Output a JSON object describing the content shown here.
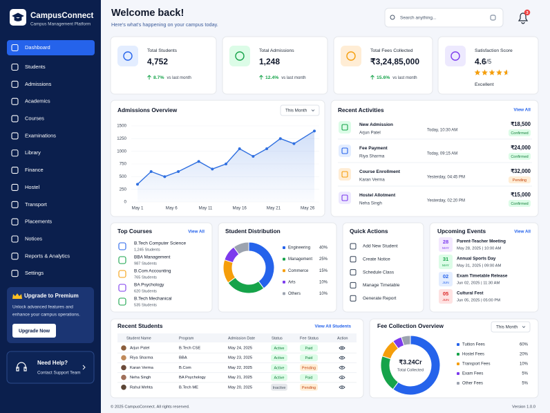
{
  "brand": {
    "name": "CampusConnect",
    "tagline": "Campus Management Platform"
  },
  "nav": [
    "Dashboard",
    "Students",
    "Admissions",
    "Academics",
    "Courses",
    "Examinations",
    "Library",
    "Finance",
    "Hostel",
    "Transport",
    "Placements",
    "Notices",
    "Reports & Analytics",
    "Settings"
  ],
  "active_nav": 0,
  "upgrade": {
    "title": "Upgrade to Premium",
    "text": [
      "Unlock advanced features and",
      "enhance your campus operations."
    ],
    "button": "Upgrade Now"
  },
  "help": {
    "title": "Need Help?",
    "text": "Contact Support Team"
  },
  "header": {
    "title": "Welcome back!",
    "subtitle": "Here's what's happening on your campus today.",
    "search_placeholder": "Search anything...",
    "notifications": 3
  },
  "stats": [
    {
      "title": "Total Students",
      "value": "4,752",
      "change": "8.7%",
      "change_note": "vs last month"
    },
    {
      "title": "Total Admissions",
      "value": "1,248",
      "change": "12.4%",
      "change_note": "vs last month"
    },
    {
      "title": "Total Fees Collected",
      "value": "₹3,24,85,000",
      "change": "15.6%",
      "change_note": "vs last month"
    },
    {
      "title": "Satisfaction Score",
      "rating": 4.6,
      "rating_suffix": "/5",
      "rating_label": "Excellent"
    }
  ],
  "admissions": {
    "type": "line",
    "title": "Admissions Overview",
    "period": "This Month",
    "color": "#2f6fe0",
    "x": [
      1,
      3,
      5,
      7,
      10,
      12,
      14,
      16,
      18,
      20,
      22,
      24,
      27
    ],
    "values": [
      350,
      600,
      500,
      600,
      800,
      650,
      750,
      1050,
      900,
      1050,
      1250,
      1150,
      1400
    ],
    "xlim": [
      1,
      27
    ],
    "xticks": [
      {
        "value": 1,
        "label": "May 1"
      },
      {
        "value": 6,
        "label": "May 6"
      },
      {
        "value": 11,
        "label": "May 11"
      },
      {
        "value": 16,
        "label": "May 16"
      },
      {
        "value": 21,
        "label": "May 21"
      },
      {
        "value": 26,
        "label": "May 26"
      }
    ],
    "ylim": [
      0,
      1500
    ],
    "yticks": [
      0,
      250,
      500,
      750,
      1000,
      1250,
      1500
    ]
  },
  "activities": {
    "title": "Recent Activities",
    "link": "View All",
    "items": [
      {
        "title": "New Admission",
        "person": "Arjun Patel",
        "time": "Today, 10:30 AM",
        "amount": "₹18,500",
        "status": "Confirmed"
      },
      {
        "title": "Fee Payment",
        "person": "Riya Sharma",
        "time": "Today, 09:15 AM",
        "amount": "₹24,000",
        "status": "Confirmed"
      },
      {
        "title": "Course Enrollment",
        "person": "Karan Verma",
        "time": "Yesterday, 04:45 PM",
        "amount": "₹32,000",
        "status": "Pending"
      },
      {
        "title": "Hostel Allotment",
        "person": "Neha Singh",
        "time": "Yesterday, 02:20 PM",
        "amount": "₹15,000",
        "status": "Confirmed"
      }
    ]
  },
  "top_courses": {
    "title": "Top Courses",
    "link": "View All",
    "items": [
      {
        "name": "B.Tech Computer Science",
        "students": "1,245 Students"
      },
      {
        "name": "BBA Management",
        "students": "987 Students"
      },
      {
        "name": "B.Com Accounting",
        "students": "765 Students"
      },
      {
        "name": "BA Psychology",
        "students": "620 Students"
      },
      {
        "name": "B.Tech Mechanical",
        "students": "535 Students"
      }
    ]
  },
  "distribution": {
    "type": "pie",
    "title": "Student Distribution",
    "categories": [
      "Engineering",
      "Management",
      "Commerce",
      "Arts",
      "Others"
    ],
    "values": [
      40,
      25,
      15,
      10,
      10
    ],
    "value_labels": [
      "40%",
      "25%",
      "15%",
      "10%",
      "10%"
    ],
    "colors": [
      "#2563eb",
      "#16a34a",
      "#f59e0b",
      "#7c3aed",
      "#9ca3af"
    ]
  },
  "quick_actions": {
    "title": "Quick Actions",
    "items": [
      "Add New Student",
      "Create Notice",
      "Schedule Class",
      "Manage Timetable",
      "Generate Report"
    ]
  },
  "events": {
    "title": "Upcoming Events",
    "link": "View All",
    "items": [
      {
        "day": "28",
        "month": "MAY",
        "title": "Parent-Teacher Meeting",
        "date": "May 28, 2025 | 10:00 AM"
      },
      {
        "day": "31",
        "month": "MAY",
        "title": "Annual Sports Day",
        "date": "May 31, 2025 | 09:00 AM"
      },
      {
        "day": "02",
        "month": "JUN",
        "title": "Exam Timetable Release",
        "date": "Jun 02, 2025 | 11:30 AM"
      },
      {
        "day": "05",
        "month": "JUN",
        "title": "Cultural Fest",
        "date": "Jun 05, 2025 | 05:00 PM"
      }
    ]
  },
  "students": {
    "title": "Recent Students",
    "link": "View All Students",
    "columns": [
      "Student Name",
      "Program",
      "Admission Date",
      "Status",
      "Fee Status",
      "Action"
    ],
    "rows": [
      [
        "Arjun Patel",
        "B.Tech  CSE",
        "May 24, 2025",
        "Active",
        "Paid"
      ],
      [
        "Riya Sharma",
        "BBA",
        "May 23, 2025",
        "Active",
        "Paid"
      ],
      [
        "Karan Verma",
        "B.Com",
        "May 22, 2025",
        "Active",
        "Pending"
      ],
      [
        "Neha Singh",
        "BA Psychology",
        "May 21, 2025",
        "Active",
        "Paid"
      ],
      [
        "Rahul Mehta",
        "B.Tech  ME",
        "May 20, 2025",
        "Inactive",
        "Pending"
      ]
    ]
  },
  "fees": {
    "type": "pie",
    "title": "Fee Collection Overview",
    "period": "This Month",
    "total": "₹3.24Cr",
    "total_label": "Total Collected",
    "categories": [
      "Tuition Fees",
      "Hostel Fees",
      "Transport Fees",
      "Exam Fees",
      "Other Fees"
    ],
    "values": [
      60,
      20,
      10,
      5,
      5
    ],
    "value_labels": [
      "60%",
      "20%",
      "10%",
      "5%",
      "5%"
    ],
    "colors": [
      "#2563eb",
      "#16a34a",
      "#f59e0b",
      "#7c3aed",
      "#9ca3af"
    ]
  },
  "footer": {
    "copyright": "© 2025 CampusConnect. All rights reserved.",
    "version": "Version 1.0.0"
  }
}
